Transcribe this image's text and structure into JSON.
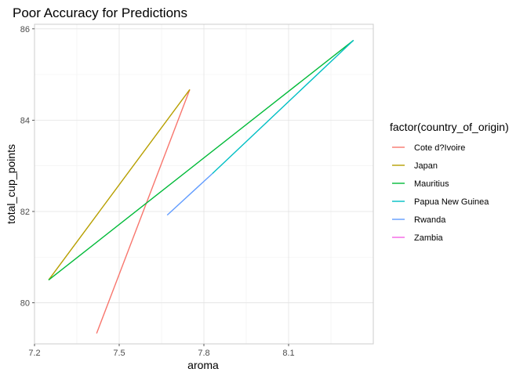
{
  "chart_data": {
    "type": "line",
    "title": "Poor Accuracy for Predictions",
    "xlabel": "aroma",
    "ylabel": "total_cup_points",
    "xlim": [
      7.2,
      8.4
    ],
    "ylim": [
      79.1,
      86.1
    ],
    "x_ticks": [
      7.2,
      7.5,
      7.8,
      8.1
    ],
    "x_tick_labels": [
      "7.2",
      "7.5",
      "7.8",
      "8.1"
    ],
    "y_ticks": [
      80,
      82,
      84,
      86
    ],
    "y_tick_labels": [
      "80",
      "82",
      "84",
      "86"
    ],
    "grid": true,
    "legend_title": "factor(country_of_origin)",
    "legend_position": "right",
    "series": [
      {
        "name": "Cote d?Ivoire",
        "color": "#F8766D",
        "points": [
          [
            7.42,
            79.33
          ],
          [
            7.75,
            84.67
          ]
        ]
      },
      {
        "name": "Japan",
        "color": "#B79F00",
        "points": [
          [
            7.25,
            80.5
          ],
          [
            7.75,
            84.67
          ]
        ]
      },
      {
        "name": "Mauritius",
        "color": "#00BA38",
        "points": [
          [
            7.25,
            80.5
          ],
          [
            8.33,
            85.75
          ]
        ]
      },
      {
        "name": "Papua New Guinea",
        "color": "#00BFC4",
        "points": [
          [
            7.83,
            82.83
          ],
          [
            8.33,
            85.75
          ]
        ]
      },
      {
        "name": "Rwanda",
        "color": "#619CFF",
        "points": [
          [
            7.67,
            81.92
          ],
          [
            7.83,
            82.83
          ]
        ]
      },
      {
        "name": "Zambia",
        "color": "#F564E3",
        "points": []
      }
    ]
  }
}
